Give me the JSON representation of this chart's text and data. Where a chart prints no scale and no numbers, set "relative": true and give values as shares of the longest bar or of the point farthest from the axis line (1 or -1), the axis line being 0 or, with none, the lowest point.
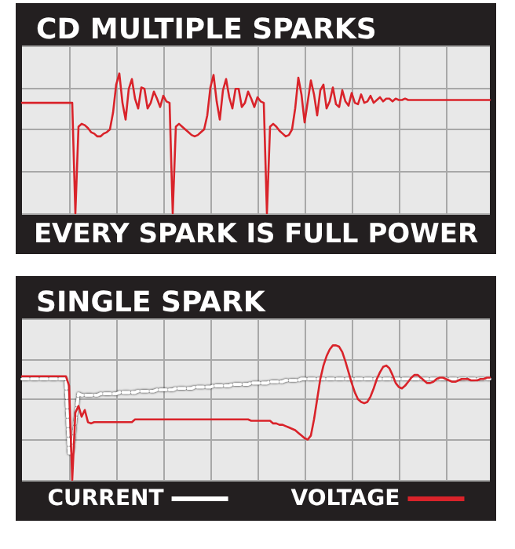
{
  "chart_data": [
    {
      "type": "line",
      "title": "CD MULTIPLE SPARKS",
      "annotations": [
        "EVERY SPARK IS FULL POWER"
      ],
      "relative": true,
      "grid": true,
      "categories": [
        null,
        null,
        null,
        null,
        null,
        null,
        null,
        null,
        null,
        null,
        null,
        null,
        null,
        null,
        null,
        null,
        null,
        null,
        null,
        null,
        null,
        null,
        null,
        null,
        null,
        null,
        null,
        null,
        null,
        null,
        null,
        null,
        null,
        null,
        null,
        null,
        null,
        null,
        null,
        null,
        null,
        null,
        null,
        null,
        null,
        null,
        null,
        null,
        null,
        null,
        null,
        null,
        null,
        null,
        null,
        null,
        null,
        null,
        null,
        null,
        null,
        null,
        null,
        null,
        null,
        null,
        null,
        null,
        null,
        null,
        null,
        null,
        null,
        null,
        null,
        null,
        null,
        null,
        null,
        null,
        null,
        null,
        null,
        null,
        null,
        null,
        null,
        null,
        null,
        null,
        null,
        null,
        null,
        null,
        null,
        null,
        null,
        null,
        null,
        null,
        null,
        null,
        null,
        null,
        null,
        null,
        null,
        null,
        null,
        null,
        null,
        null,
        null,
        null,
        null,
        null,
        null,
        null,
        null,
        null,
        null,
        null,
        null,
        null,
        null,
        null,
        null,
        null,
        null,
        null,
        null,
        null,
        null,
        null,
        null,
        null,
        null,
        null,
        null,
        null,
        null,
        null,
        null,
        null,
        null,
        null,
        null,
        null,
        null,
        null
      ],
      "series": [
        {
          "color": "#d9232a",
          "line_style": "solid",
          "values": [
            0.79,
            0.79,
            0.79,
            0.79,
            0.79,
            0.79,
            0.79,
            0.79,
            0.79,
            0.79,
            0.79,
            0.79,
            0.79,
            0.79,
            0.79,
            0.79,
            0.79,
            0,
            0.62,
            0.64,
            0.63,
            0.61,
            0.58,
            0.57,
            0.55,
            0.55,
            0.57,
            0.58,
            0.6,
            0.72,
            0.92,
            1,
            0.79,
            0.67,
            0.89,
            0.96,
            0.82,
            0.75,
            0.9,
            0.89,
            0.75,
            0.79,
            0.87,
            0.82,
            0.76,
            0.84,
            0.8,
            0.79,
            0,
            0.62,
            0.64,
            0.62,
            0.6,
            0.58,
            0.56,
            0.55,
            0.56,
            0.58,
            0.6,
            0.7,
            0.9,
            0.99,
            0.8,
            0.67,
            0.88,
            0.96,
            0.83,
            0.75,
            0.89,
            0.89,
            0.76,
            0.79,
            0.87,
            0.82,
            0.76,
            0.83,
            0.8,
            0.79,
            0,
            0.62,
            0.64,
            0.62,
            0.59,
            0.57,
            0.55,
            0.56,
            0.6,
            0.75,
            0.97,
            0.85,
            0.65,
            0.8,
            0.95,
            0.85,
            0.7,
            0.88,
            0.92,
            0.75,
            0.8,
            0.9,
            0.78,
            0.76,
            0.88,
            0.8,
            0.77,
            0.86,
            0.79,
            0.78,
            0.85,
            0.79,
            0.8,
            0.84,
            0.79,
            0.81,
            0.83,
            0.8,
            0.82,
            0.82,
            0.8,
            0.82,
            0.81,
            0.81,
            0.82,
            0.81,
            0.81,
            0.81,
            0.81,
            0.81,
            0.81,
            0.81,
            0.81,
            0.81,
            0.81,
            0.81,
            0.81,
            0.81,
            0.81,
            0.81,
            0.81,
            0.81,
            0.81,
            0.81,
            0.81,
            0.81,
            0.81,
            0.81,
            0.81,
            0.81,
            0.81,
            0.81
          ]
        }
      ]
    },
    {
      "type": "line",
      "title": "SINGLE SPARK",
      "relative": true,
      "grid": true,
      "legend": "bottom",
      "categories": [
        null,
        null,
        null,
        null,
        null,
        null,
        null,
        null,
        null,
        null,
        null,
        null,
        null,
        null,
        null,
        null,
        null,
        null,
        null,
        null,
        null,
        null,
        null,
        null,
        null,
        null,
        null,
        null,
        null,
        null,
        null,
        null,
        null,
        null,
        null,
        null,
        null,
        null,
        null,
        null,
        null,
        null,
        null,
        null,
        null,
        null,
        null,
        null,
        null,
        null,
        null,
        null,
        null,
        null,
        null,
        null,
        null,
        null,
        null,
        null,
        null,
        null,
        null,
        null,
        null,
        null,
        null,
        null,
        null,
        null,
        null,
        null,
        null,
        null,
        null,
        null,
        null,
        null,
        null,
        null,
        null,
        null,
        null,
        null,
        null,
        null,
        null,
        null,
        null,
        null,
        null,
        null,
        null,
        null,
        null,
        null,
        null,
        null,
        null,
        null,
        null,
        null,
        null,
        null,
        null,
        null,
        null,
        null,
        null,
        null,
        null,
        null,
        null,
        null,
        null,
        null,
        null,
        null,
        null,
        null,
        null,
        null,
        null,
        null,
        null,
        null,
        null,
        null,
        null,
        null,
        null,
        null,
        null,
        null,
        null,
        null,
        null,
        null,
        null,
        null,
        null,
        null,
        null,
        null,
        null,
        null,
        null,
        null,
        null,
        null
      ],
      "series": [
        {
          "name": "CURRENT",
          "color": "#ffffff",
          "line_style": "dashed",
          "values": [
            0.75,
            0.75,
            0.75,
            0.75,
            0.75,
            0.75,
            0.75,
            0.75,
            0.75,
            0.75,
            0.75,
            0.75,
            0.75,
            0.75,
            0.75,
            0.2,
            0.2,
            0.45,
            0.64,
            0.63,
            0.63,
            0.63,
            0.63,
            0.63,
            0.63,
            0.64,
            0.64,
            0.64,
            0.64,
            0.64,
            0.64,
            0.65,
            0.65,
            0.65,
            0.65,
            0.65,
            0.65,
            0.66,
            0.66,
            0.66,
            0.66,
            0.66,
            0.66,
            0.67,
            0.67,
            0.67,
            0.67,
            0.67,
            0.67,
            0.68,
            0.68,
            0.68,
            0.68,
            0.68,
            0.68,
            0.69,
            0.69,
            0.69,
            0.69,
            0.69,
            0.69,
            0.7,
            0.7,
            0.7,
            0.7,
            0.7,
            0.7,
            0.71,
            0.71,
            0.71,
            0.71,
            0.71,
            0.71,
            0.72,
            0.72,
            0.72,
            0.72,
            0.72,
            0.72,
            0.73,
            0.73,
            0.73,
            0.73,
            0.73,
            0.74,
            0.74,
            0.74,
            0.74,
            0.74,
            0.75,
            0.75,
            0.75,
            0.75,
            0.75,
            0.75,
            0.75,
            0.75,
            0.75,
            0.75,
            0.75,
            0.75,
            0.75,
            0.75,
            0.75,
            0.75,
            0.75,
            0.75,
            0.75,
            0.75,
            0.75,
            0.75,
            0.75,
            0.75,
            0.75,
            0.75,
            0.75,
            0.75,
            0.75,
            0.75,
            0.75,
            0.75,
            0.75,
            0.75,
            0.75,
            0.75,
            0.75,
            0.75,
            0.75,
            0.75,
            0.75,
            0.75,
            0.75,
            0.75,
            0.75,
            0.75,
            0.75,
            0.75,
            0.75,
            0.75,
            0.75,
            0.75,
            0.75,
            0.75,
            0.75,
            0.75,
            0.75,
            0.75,
            0.75,
            0.75,
            0.75
          ]
        },
        {
          "name": "VOLTAGE",
          "color": "#d9232a",
          "line_style": "solid",
          "values": [
            0.77,
            0.77,
            0.77,
            0.77,
            0.77,
            0.77,
            0.77,
            0.77,
            0.77,
            0.77,
            0.77,
            0.77,
            0.77,
            0.77,
            0.77,
            0.7,
            0,
            0.5,
            0.55,
            0.47,
            0.52,
            0.43,
            0.42,
            0.43,
            0.43,
            0.43,
            0.43,
            0.43,
            0.43,
            0.43,
            0.43,
            0.43,
            0.43,
            0.43,
            0.43,
            0.43,
            0.45,
            0.45,
            0.45,
            0.45,
            0.45,
            0.45,
            0.45,
            0.45,
            0.45,
            0.45,
            0.45,
            0.45,
            0.45,
            0.45,
            0.45,
            0.45,
            0.45,
            0.45,
            0.45,
            0.45,
            0.45,
            0.45,
            0.45,
            0.45,
            0.45,
            0.45,
            0.45,
            0.45,
            0.45,
            0.45,
            0.45,
            0.45,
            0.45,
            0.45,
            0.45,
            0.45,
            0.45,
            0.44,
            0.44,
            0.44,
            0.44,
            0.44,
            0.44,
            0.44,
            0.42,
            0.42,
            0.41,
            0.41,
            0.4,
            0.39,
            0.38,
            0.37,
            0.35,
            0.33,
            0.31,
            0.3,
            0.33,
            0.45,
            0.6,
            0.75,
            0.85,
            0.92,
            0.97,
            1.0,
            1.0,
            0.99,
            0.95,
            0.88,
            0.8,
            0.72,
            0.65,
            0.6,
            0.58,
            0.57,
            0.58,
            0.62,
            0.68,
            0.75,
            0.8,
            0.84,
            0.85,
            0.83,
            0.78,
            0.72,
            0.69,
            0.68,
            0.7,
            0.73,
            0.76,
            0.78,
            0.78,
            0.76,
            0.74,
            0.72,
            0.72,
            0.73,
            0.75,
            0.76,
            0.76,
            0.75,
            0.74,
            0.73,
            0.73,
            0.74,
            0.75,
            0.75,
            0.75,
            0.74,
            0.74,
            0.74,
            0.75,
            0.75,
            0.76,
            0.76
          ]
        }
      ]
    }
  ]
}
